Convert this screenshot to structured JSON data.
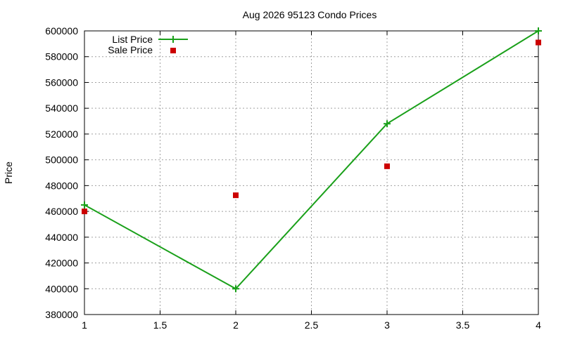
{
  "chart_data": {
    "type": "line",
    "title": "Aug 2026 95123 Condo Prices",
    "xlabel": "",
    "ylabel": "Price",
    "xlim": [
      1,
      4
    ],
    "ylim": [
      380000,
      600000
    ],
    "x_ticks": [
      "1",
      "1.5",
      "2",
      "2.5",
      "3",
      "3.5",
      "4"
    ],
    "y_ticks": [
      "380000",
      "400000",
      "420000",
      "440000",
      "460000",
      "480000",
      "500000",
      "520000",
      "540000",
      "560000",
      "580000",
      "600000"
    ],
    "grid": true,
    "legend_position": "top-left",
    "series": [
      {
        "name": "List Price",
        "style": "line with plus markers",
        "color": "#1aa01a",
        "x": [
          1,
          2,
          3,
          4
        ],
        "values": [
          465000,
          400000,
          528000,
          600000
        ]
      },
      {
        "name": "Sale Price",
        "style": "square markers",
        "color": "#cc0000",
        "x": [
          1,
          2,
          3,
          4
        ],
        "values": [
          460000,
          472500,
          495000,
          591000
        ]
      }
    ]
  }
}
